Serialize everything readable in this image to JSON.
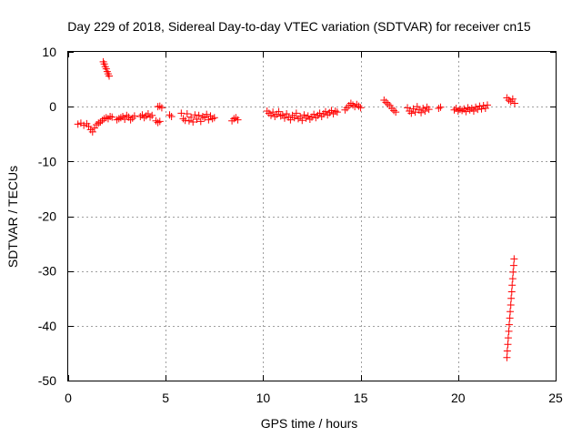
{
  "chart_data": {
    "type": "scatter",
    "title": "Day 229 of 2018, Sidereal Day-to-day VTEC variation (SDTVAR) for receiver cn15",
    "xlabel": "GPS time / hours",
    "ylabel": "SDTVAR / TECUs",
    "xlim": [
      0,
      25
    ],
    "ylim": [
      -50,
      10
    ],
    "xticks": [
      0,
      5,
      10,
      15,
      20,
      25
    ],
    "yticks": [
      -50,
      -40,
      -30,
      -20,
      -10,
      0,
      10
    ],
    "grid": true,
    "marker": "+",
    "color": "#ff0000",
    "series": [
      {
        "name": "SDTVAR",
        "points": [
          [
            0.5,
            -3.2
          ],
          [
            0.65,
            -3.0
          ],
          [
            0.8,
            -3.4
          ],
          [
            0.95,
            -3.1
          ],
          [
            1.05,
            -3.6
          ],
          [
            1.15,
            -4.2
          ],
          [
            1.25,
            -4.6
          ],
          [
            1.35,
            -3.9
          ],
          [
            1.45,
            -3.3
          ],
          [
            1.55,
            -3.0
          ],
          [
            1.65,
            -2.8
          ],
          [
            1.75,
            -2.5
          ],
          [
            1.85,
            -2.2
          ],
          [
            1.95,
            -2.0
          ],
          [
            2.05,
            -2.2
          ],
          [
            2.15,
            -1.8
          ],
          [
            2.25,
            -1.9
          ],
          [
            1.8,
            8.2
          ],
          [
            1.85,
            7.8
          ],
          [
            1.9,
            7.3
          ],
          [
            1.95,
            6.9
          ],
          [
            2.0,
            6.4
          ],
          [
            2.05,
            6.0
          ],
          [
            2.1,
            5.6
          ],
          [
            2.5,
            -2.4
          ],
          [
            2.6,
            -2.2
          ],
          [
            2.7,
            -2.0
          ],
          [
            2.8,
            -1.8
          ],
          [
            2.9,
            -2.3
          ],
          [
            3.0,
            -1.6
          ],
          [
            3.1,
            -1.9
          ],
          [
            3.2,
            -2.4
          ],
          [
            3.3,
            -2.1
          ],
          [
            3.4,
            -1.7
          ],
          [
            3.7,
            -1.8
          ],
          [
            3.8,
            -1.5
          ],
          [
            3.9,
            -2.0
          ],
          [
            4.0,
            -1.7
          ],
          [
            4.1,
            -1.3
          ],
          [
            4.2,
            -1.9
          ],
          [
            4.3,
            -1.6
          ],
          [
            4.5,
            -2.6
          ],
          [
            4.6,
            -2.9
          ],
          [
            4.7,
            -2.7
          ],
          [
            4.6,
            0.0
          ],
          [
            4.7,
            0.1
          ],
          [
            4.8,
            -0.2
          ],
          [
            5.2,
            -1.5
          ],
          [
            5.3,
            -1.8
          ],
          [
            5.8,
            -1.2
          ],
          [
            5.9,
            -2.2
          ],
          [
            6.0,
            -2.5
          ],
          [
            6.1,
            -1.3
          ],
          [
            6.2,
            -2.6
          ],
          [
            6.3,
            -1.9
          ],
          [
            6.4,
            -2.8
          ],
          [
            6.5,
            -1.5
          ],
          [
            6.6,
            -2.3
          ],
          [
            6.7,
            -1.6
          ],
          [
            6.8,
            -2.7
          ],
          [
            6.9,
            -1.8
          ],
          [
            7.0,
            -2.0
          ],
          [
            7.1,
            -1.4
          ],
          [
            7.2,
            -2.4
          ],
          [
            7.3,
            -1.7
          ],
          [
            7.4,
            -2.2
          ],
          [
            7.5,
            -2.0
          ],
          [
            8.4,
            -2.6
          ],
          [
            8.5,
            -2.2
          ],
          [
            8.6,
            -2.0
          ],
          [
            8.7,
            -2.4
          ],
          [
            10.2,
            -0.8
          ],
          [
            10.3,
            -1.2
          ],
          [
            10.4,
            -1.6
          ],
          [
            10.5,
            -1.0
          ],
          [
            10.6,
            -1.8
          ],
          [
            10.7,
            -1.4
          ],
          [
            10.8,
            -0.9
          ],
          [
            10.9,
            -1.7
          ],
          [
            11.0,
            -1.5
          ],
          [
            11.1,
            -2.1
          ],
          [
            11.2,
            -1.3
          ],
          [
            11.3,
            -1.9
          ],
          [
            11.4,
            -2.4
          ],
          [
            11.5,
            -1.6
          ],
          [
            11.6,
            -2.0
          ],
          [
            11.7,
            -1.2
          ],
          [
            11.8,
            -2.2
          ],
          [
            11.9,
            -1.8
          ],
          [
            12.0,
            -2.5
          ],
          [
            12.1,
            -1.5
          ],
          [
            12.2,
            -2.1
          ],
          [
            12.3,
            -1.7
          ],
          [
            12.4,
            -2.3
          ],
          [
            12.5,
            -1.9
          ],
          [
            12.6,
            -1.4
          ],
          [
            12.7,
            -2.0
          ],
          [
            12.8,
            -1.6
          ],
          [
            12.9,
            -1.2
          ],
          [
            13.0,
            -1.8
          ],
          [
            13.1,
            -1.3
          ],
          [
            13.2,
            -0.9
          ],
          [
            13.3,
            -1.5
          ],
          [
            13.4,
            -1.1
          ],
          [
            13.5,
            -0.7
          ],
          [
            13.6,
            -1.3
          ],
          [
            13.7,
            -0.8
          ],
          [
            13.8,
            -1.0
          ],
          [
            14.2,
            -0.6
          ],
          [
            14.3,
            -0.2
          ],
          [
            14.4,
            0.2
          ],
          [
            14.5,
            0.6
          ],
          [
            14.6,
            0.3
          ],
          [
            14.7,
            0.0
          ],
          [
            14.8,
            0.4
          ],
          [
            14.9,
            0.1
          ],
          [
            15.0,
            -0.2
          ],
          [
            16.2,
            1.2
          ],
          [
            16.3,
            0.8
          ],
          [
            16.4,
            0.5
          ],
          [
            16.5,
            0.2
          ],
          [
            16.6,
            -0.3
          ],
          [
            16.7,
            -0.7
          ],
          [
            16.8,
            -1.0
          ],
          [
            17.4,
            -0.2
          ],
          [
            17.5,
            -0.8
          ],
          [
            17.6,
            -1.2
          ],
          [
            17.7,
            -0.4
          ],
          [
            17.8,
            -1.0
          ],
          [
            17.9,
            0.0
          ],
          [
            18.0,
            -0.6
          ],
          [
            18.1,
            -1.1
          ],
          [
            18.2,
            -0.3
          ],
          [
            18.3,
            -0.8
          ],
          [
            18.4,
            -0.1
          ],
          [
            18.5,
            -0.5
          ],
          [
            19.0,
            -0.3
          ],
          [
            19.1,
            -0.1
          ],
          [
            19.8,
            -0.6
          ],
          [
            19.9,
            -0.3
          ],
          [
            20.0,
            -0.8
          ],
          [
            20.1,
            -0.5
          ],
          [
            20.2,
            -0.7
          ],
          [
            20.3,
            -0.4
          ],
          [
            20.4,
            -0.9
          ],
          [
            20.5,
            -0.2
          ],
          [
            20.6,
            -0.6
          ],
          [
            20.7,
            -0.3
          ],
          [
            20.8,
            -0.8
          ],
          [
            20.9,
            -0.1
          ],
          [
            21.0,
            -0.5
          ],
          [
            21.1,
            0.1
          ],
          [
            21.2,
            -0.4
          ],
          [
            21.3,
            0.2
          ],
          [
            21.4,
            -0.3
          ],
          [
            21.5,
            0.3
          ],
          [
            22.5,
            1.6
          ],
          [
            22.6,
            1.2
          ],
          [
            22.7,
            0.9
          ],
          [
            22.8,
            1.4
          ],
          [
            22.9,
            0.6
          ],
          [
            22.5,
            -45.8
          ],
          [
            22.52,
            -44.6
          ],
          [
            22.55,
            -43.4
          ],
          [
            22.57,
            -42.2
          ],
          [
            22.6,
            -41.0
          ],
          [
            22.62,
            -39.8
          ],
          [
            22.65,
            -38.6
          ],
          [
            22.67,
            -37.4
          ],
          [
            22.7,
            -36.2
          ],
          [
            22.72,
            -35.0
          ],
          [
            22.75,
            -33.8
          ],
          [
            22.77,
            -32.6
          ],
          [
            22.8,
            -31.4
          ],
          [
            22.82,
            -30.2
          ],
          [
            22.85,
            -29.0
          ],
          [
            22.87,
            -27.8
          ]
        ]
      }
    ]
  }
}
